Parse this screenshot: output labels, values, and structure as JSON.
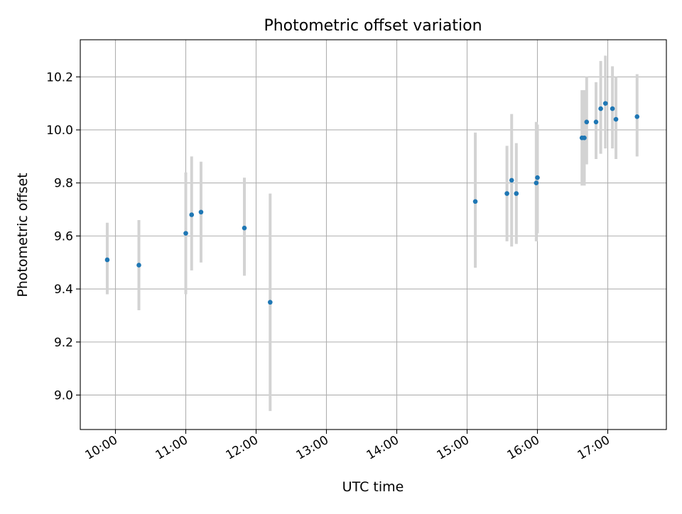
{
  "chart_data": {
    "type": "scatter",
    "title": "Photometric offset variation",
    "xlabel": "UTC time",
    "ylabel": "Photometric offset",
    "grid": true,
    "legend": "none",
    "xlim": [
      "09:30",
      "17:50"
    ],
    "ylim": [
      8.87,
      10.34
    ],
    "x_ticks": [
      "10:00",
      "11:00",
      "12:00",
      "13:00",
      "14:00",
      "15:00",
      "16:00",
      "17:00"
    ],
    "y_ticks": [
      9.0,
      9.2,
      9.4,
      9.6,
      9.8,
      10.0,
      10.2
    ],
    "y_tick_labels": [
      "9.0",
      "9.2",
      "9.4",
      "9.6",
      "9.8",
      "10.0",
      "10.2"
    ],
    "colors": {
      "points": "#1f77b4",
      "error_bars": "#d3d3d3",
      "grid": "#b0b0b0"
    },
    "points": [
      {
        "x": "09:53",
        "y": 9.51,
        "lo": 9.38,
        "hi": 9.65
      },
      {
        "x": "10:20",
        "y": 9.49,
        "lo": 9.32,
        "hi": 9.66
      },
      {
        "x": "11:00",
        "y": 9.61,
        "lo": 9.38,
        "hi": 9.84
      },
      {
        "x": "11:05",
        "y": 9.68,
        "lo": 9.47,
        "hi": 9.9
      },
      {
        "x": "11:13",
        "y": 9.69,
        "lo": 9.5,
        "hi": 9.88
      },
      {
        "x": "11:50",
        "y": 9.63,
        "lo": 9.45,
        "hi": 9.82
      },
      {
        "x": "12:12",
        "y": 9.35,
        "lo": 8.94,
        "hi": 9.76
      },
      {
        "x": "15:07",
        "y": 9.73,
        "lo": 9.48,
        "hi": 9.99
      },
      {
        "x": "15:34",
        "y": 9.76,
        "lo": 9.58,
        "hi": 9.94
      },
      {
        "x": "15:38",
        "y": 9.81,
        "lo": 9.56,
        "hi": 10.06
      },
      {
        "x": "15:42",
        "y": 9.76,
        "lo": 9.57,
        "hi": 9.95
      },
      {
        "x": "15:59",
        "y": 9.8,
        "lo": 9.58,
        "hi": 10.03
      },
      {
        "x": "16:00",
        "y": 9.82,
        "lo": 9.61,
        "hi": 10.02
      },
      {
        "x": "16:38",
        "y": 9.97,
        "lo": 9.79,
        "hi": 10.15
      },
      {
        "x": "16:40",
        "y": 9.97,
        "lo": 9.79,
        "hi": 10.15
      },
      {
        "x": "16:42",
        "y": 10.03,
        "lo": 9.87,
        "hi": 10.2
      },
      {
        "x": "16:50",
        "y": 10.03,
        "lo": 9.89,
        "hi": 10.18
      },
      {
        "x": "16:54",
        "y": 10.08,
        "lo": 9.91,
        "hi": 10.26
      },
      {
        "x": "16:58",
        "y": 10.1,
        "lo": 9.93,
        "hi": 10.28
      },
      {
        "x": "17:04",
        "y": 10.08,
        "lo": 9.93,
        "hi": 10.24
      },
      {
        "x": "17:07",
        "y": 10.04,
        "lo": 9.89,
        "hi": 10.2
      },
      {
        "x": "17:25",
        "y": 10.05,
        "lo": 9.9,
        "hi": 10.21
      }
    ]
  }
}
